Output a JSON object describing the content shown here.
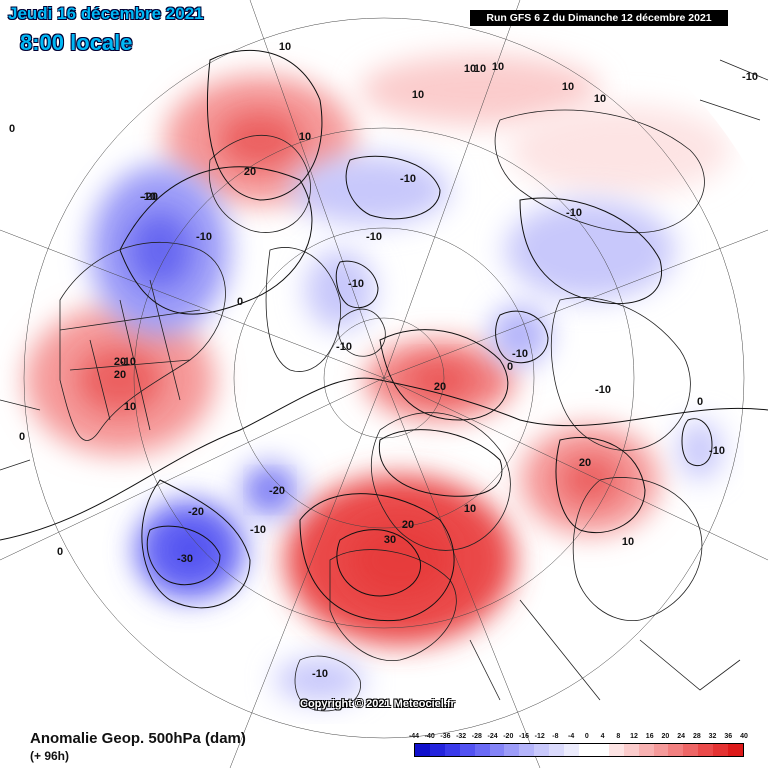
{
  "header": {
    "date": "Jeudi 16 décembre 2021",
    "time": "8:00 locale",
    "run": "Run GFS 6 Z du Dimanche 12 décembre 2021"
  },
  "footer": {
    "copyright": "Copyright © 2021 Meteociel.fr",
    "parameter": "Anomalie Geop. 500hPa (dam)",
    "lead": "(+ 96h)"
  },
  "legend": {
    "ticks": [
      "-44",
      "-40",
      "-36",
      "-32",
      "-28",
      "-24",
      "-20",
      "-16",
      "-12",
      "-8",
      "-4",
      "0",
      "4",
      "8",
      "12",
      "16",
      "20",
      "24",
      "28",
      "32",
      "36",
      "40"
    ],
    "colors": [
      "#1010cc",
      "#2424dd",
      "#3a3aea",
      "#5252f2",
      "#6a6af5",
      "#8484f7",
      "#9c9cf8",
      "#b4b4fa",
      "#c8c8fb",
      "#dadafc",
      "#ececfd",
      "#ffffff",
      "#ffffff",
      "#fde4e4",
      "#fbcccc",
      "#f8b2b2",
      "#f59a9a",
      "#f28080",
      "#ee6666",
      "#ea4a4a",
      "#e43232",
      "#dd1a1a"
    ]
  },
  "anomalies": [
    {
      "label": "20",
      "value": 20,
      "color": "#f59a9a"
    },
    {
      "label": "10",
      "value": 10,
      "color": "#fbcccc"
    },
    {
      "label": "10",
      "value": 10,
      "color": "#fde4e4"
    },
    {
      "label": "20",
      "value": 20,
      "color": "#f59a9a"
    },
    {
      "label": "30",
      "value": 30,
      "color": "#ea4a4a"
    },
    {
      "label": "20",
      "value": 20,
      "color": "#f28080"
    },
    {
      "label": "20",
      "value": 20,
      "color": "#f59a9a"
    },
    {
      "label": "-20",
      "value": -20,
      "color": "#9c9cf8"
    },
    {
      "label": "-10",
      "value": -10,
      "color": "#c8c8fb"
    },
    {
      "label": "-10",
      "value": -10,
      "color": "#c8c8fb"
    },
    {
      "label": "-10",
      "value": -10,
      "color": "#c8c8fb"
    },
    {
      "label": "-10",
      "value": -10,
      "color": "#b4b4fa"
    },
    {
      "label": "-30",
      "value": -30,
      "color": "#6a6af5"
    },
    {
      "label": "-20",
      "value": -20,
      "color": "#9c9cf8"
    },
    {
      "label": "-10",
      "value": -10,
      "color": "#c8c8fb"
    },
    {
      "label": "-10",
      "value": -10,
      "color": "#c8c8fb"
    }
  ],
  "contour_labels": [
    "10",
    "10",
    "10",
    "10",
    "10",
    "10",
    "10",
    "20",
    "20",
    "20",
    "20",
    "20",
    "20",
    "30",
    "10",
    "10",
    "10",
    "10",
    "-10",
    "-10",
    "-10",
    "-10",
    "-10",
    "-10",
    "-10",
    "-10",
    "-10",
    "-10",
    "-10",
    "-10",
    "-20",
    "-20",
    "-20",
    "-30",
    "-10",
    "-10",
    "0",
    "0",
    "0",
    "0",
    "0",
    "0"
  ]
}
